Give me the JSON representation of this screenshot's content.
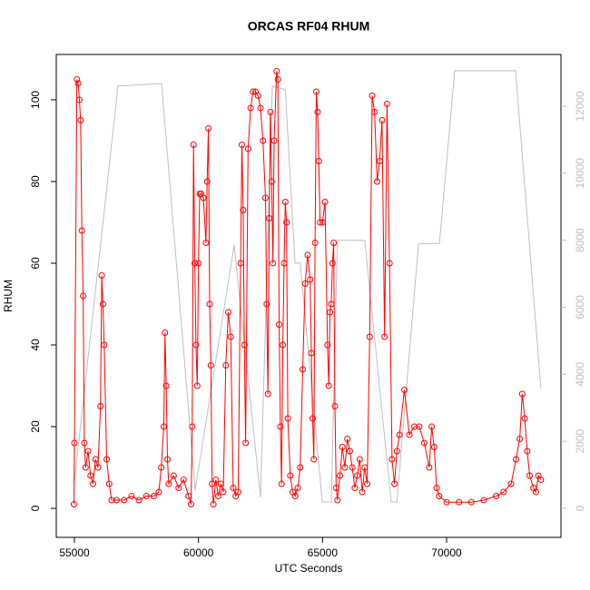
{
  "chart_data": {
    "type": "line",
    "title": "ORCAS RF04 RHUM",
    "x_label": "UTC Seconds",
    "y_label": "RHUM",
    "xlim": [
      54268,
      74610
    ],
    "ylim": [
      -7.1,
      111.1
    ],
    "y2lim": [
      -867,
      13545
    ],
    "xticks": [
      55000,
      60000,
      65000,
      70000
    ],
    "yticks": [
      0,
      20,
      40,
      60,
      80,
      100
    ],
    "y2ticks": [
      0,
      2000,
      4000,
      6000,
      8000,
      10000,
      12000
    ],
    "series": [
      {
        "color": "#bebebe",
        "axis": "y2",
        "marker": false,
        "x": [
          55000,
          56756,
          58512,
          59866,
          61440,
          62500,
          62976,
          63500,
          63890,
          64100,
          64990,
          65355,
          65600,
          66493,
          66700,
          67770,
          68000,
          68870,
          69710,
          70330,
          72780,
          73800
        ],
        "values": [
          800,
          12600,
          12680,
          540,
          7860,
          325,
          12600,
          12500,
          7320,
          7320,
          190,
          190,
          8000,
          8000,
          8000,
          190,
          190,
          7900,
          7900,
          13060,
          13060,
          3580
        ]
      },
      {
        "color": "#ff0000",
        "axis": "y",
        "marker": true,
        "x": [
          54980,
          55000,
          55100,
          55150,
          55200,
          55250,
          55300,
          55350,
          55400,
          55450,
          55550,
          55650,
          55750,
          55850,
          55950,
          56050,
          56100,
          56150,
          56200,
          56300,
          56400,
          56500,
          56700,
          57000,
          57300,
          57600,
          57900,
          58200,
          58400,
          58500,
          58600,
          58650,
          58700,
          58750,
          58800,
          59000,
          59200,
          59400,
          59600,
          59700,
          59750,
          59800,
          59850,
          59900,
          59950,
          60000,
          60050,
          60100,
          60200,
          60300,
          60350,
          60400,
          60450,
          60500,
          60550,
          60600,
          60700,
          60800,
          60900,
          61000,
          61100,
          61200,
          61300,
          61400,
          61500,
          61600,
          61700,
          61750,
          61800,
          61850,
          61900,
          62000,
          62100,
          62200,
          62300,
          62400,
          62500,
          62600,
          62700,
          62750,
          62800,
          62850,
          62900,
          62950,
          63000,
          63050,
          63150,
          63200,
          63250,
          63300,
          63350,
          63400,
          63450,
          63500,
          63550,
          63600,
          63700,
          63800,
          63900,
          64000,
          64100,
          64200,
          64300,
          64400,
          64500,
          64550,
          64600,
          64650,
          64700,
          64750,
          64800,
          64850,
          64900,
          65000,
          65100,
          65200,
          65250,
          65300,
          65350,
          65400,
          65450,
          65500,
          65550,
          65600,
          65700,
          65800,
          65900,
          66000,
          66100,
          66200,
          66300,
          66400,
          66500,
          66600,
          66700,
          66800,
          66900,
          67000,
          67100,
          67200,
          67300,
          67400,
          67500,
          67600,
          67700,
          67800,
          67900,
          68000,
          68100,
          68300,
          68500,
          68700,
          68900,
          69100,
          69300,
          69400,
          69500,
          69600,
          69700,
          70000,
          70500,
          71000,
          71500,
          72000,
          72300,
          72600,
          72800,
          72950,
          73050,
          73150,
          73250,
          73350,
          73500,
          73600,
          73700,
          73800
        ],
        "values": [
          1,
          16,
          105,
          104,
          100,
          95,
          68,
          52,
          16,
          10,
          14,
          8,
          6,
          12,
          10,
          25,
          57,
          50,
          40,
          12,
          6,
          2,
          2,
          2,
          3,
          2,
          3,
          3,
          4,
          10,
          20,
          43,
          30,
          12,
          6,
          8,
          5,
          7,
          3,
          1,
          20,
          89,
          60,
          40,
          30,
          60,
          77,
          77,
          76,
          65,
          80,
          93,
          50,
          35,
          6,
          1,
          7,
          3,
          6,
          4,
          35,
          48,
          42,
          5,
          3,
          4,
          60,
          89,
          73,
          40,
          16,
          88,
          98,
          102,
          102,
          101,
          98,
          90,
          76,
          50,
          28,
          71,
          97,
          80,
          60,
          90,
          107,
          105,
          45,
          20,
          6,
          40,
          60,
          75,
          70,
          22,
          8,
          4,
          3,
          5,
          10,
          34,
          55,
          62,
          56,
          38,
          22,
          12,
          65,
          102,
          97,
          85,
          70,
          70,
          75,
          40,
          30,
          48,
          50,
          60,
          65,
          25,
          5,
          2,
          8,
          15,
          10,
          17,
          14,
          10,
          5,
          8,
          12,
          4,
          10,
          6,
          42,
          101,
          97,
          80,
          85,
          95,
          42,
          99,
          60,
          12,
          6,
          14,
          18,
          29,
          18,
          20,
          20,
          16,
          10,
          20,
          15,
          5,
          3,
          1.5,
          1.5,
          1.5,
          2,
          3,
          4,
          6,
          12,
          17,
          28,
          22,
          14,
          8,
          5,
          4,
          8,
          7
        ]
      }
    ]
  }
}
